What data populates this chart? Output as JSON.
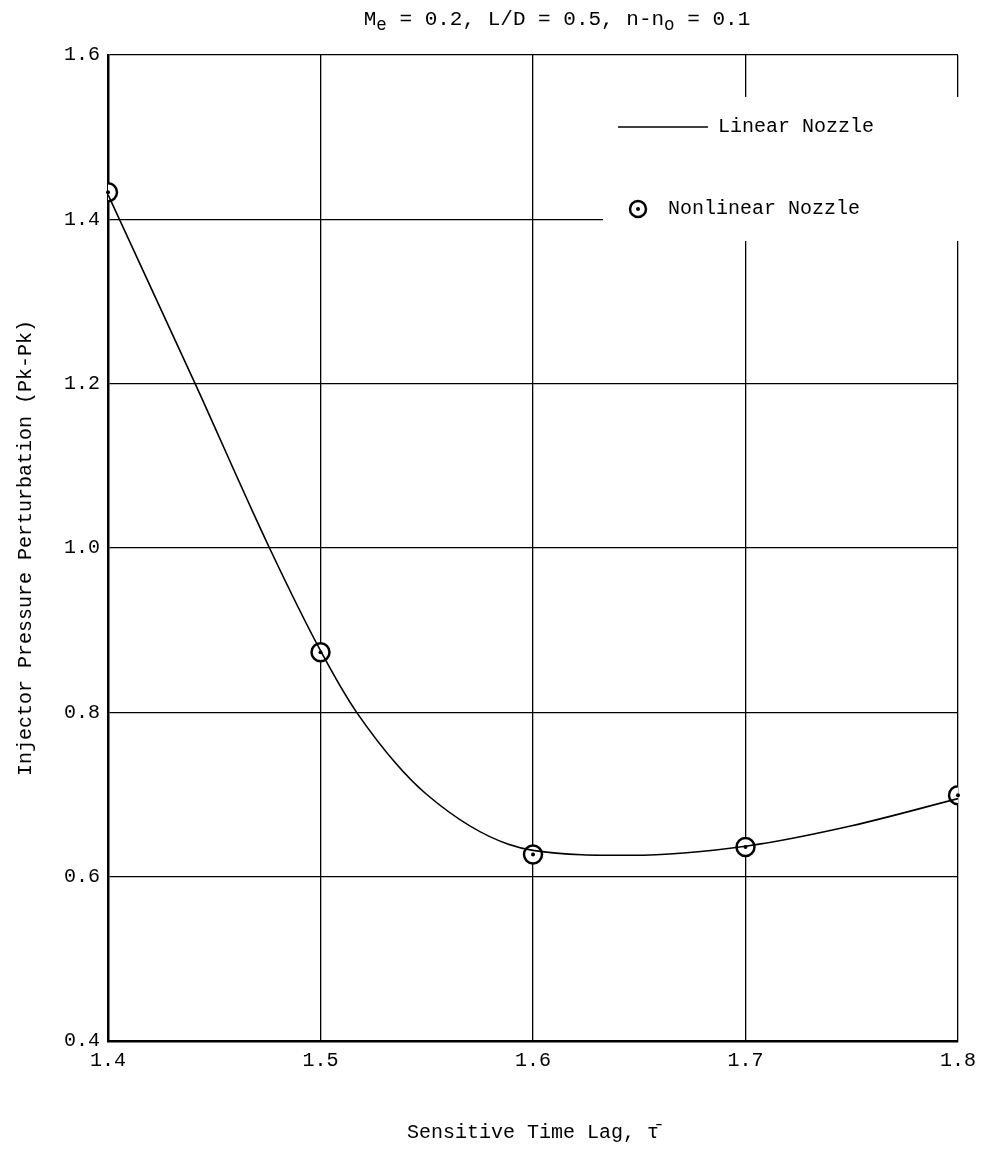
{
  "chart_data": {
    "type": "line",
    "title": "M$_{e}$ = 0.2, L/D = 0.5, n-n$_{o}$ = 0.1",
    "xlabel": "Sensitive Time Lag, τ̄",
    "ylabel": "Injector Pressure Perturbation (Pk-Pk)",
    "xlim": [
      1.4,
      1.8
    ],
    "xticks": [
      1.4,
      1.5,
      1.6,
      1.7,
      1.8
    ],
    "ylim": [
      0.4,
      1.6
    ],
    "yticks": [
      0.4,
      0.6,
      0.8,
      {
        "value": 1.0,
        "label": "1.0"
      },
      1.2,
      1.4,
      1.6
    ],
    "grid": true,
    "legend": "top right",
    "series": [
      {
        "name": "Linear Nozzle",
        "type": "line",
        "color": "#000000",
        "marker": "none",
        "line_style": "solid",
        "x": [
          1.4,
          1.441,
          1.476,
          1.5,
          1.517,
          1.55,
          1.6,
          1.646,
          1.7,
          1.75,
          1.8
        ],
        "values": [
          1.43,
          1.2,
          1.0,
          0.875,
          0.8,
          0.7,
          0.632,
          0.626,
          0.637,
          0.662,
          0.695
        ]
      },
      {
        "name": "Nonlinear Nozzle",
        "type": "scatter",
        "color": "#000000",
        "marker": "circle",
        "x": [
          1.4,
          1.5,
          1.6,
          1.7,
          1.8
        ],
        "values": [
          1.433,
          0.873,
          0.627,
          0.636,
          0.699
        ]
      }
    ]
  }
}
